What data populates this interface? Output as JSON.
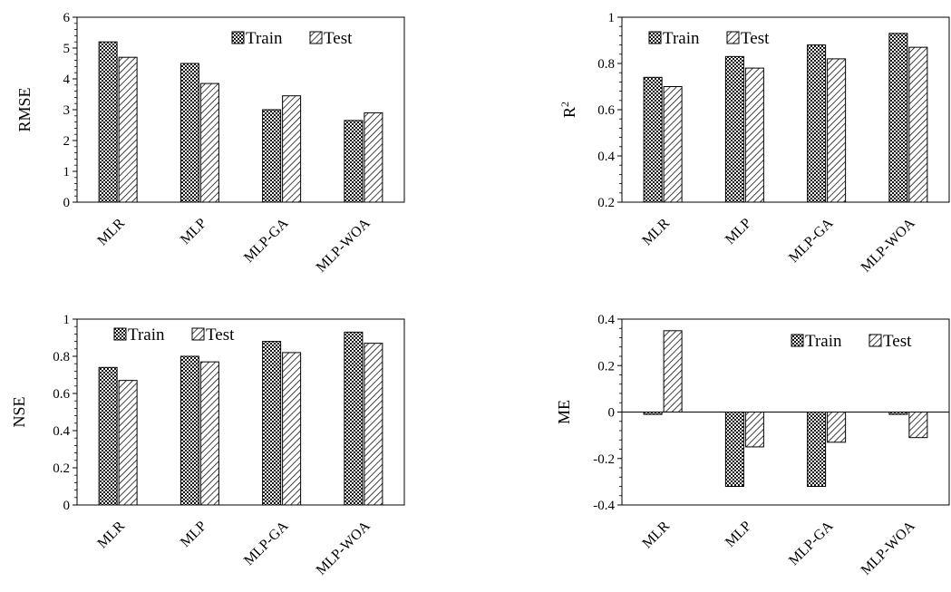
{
  "chart_data": [
    {
      "type": "bar",
      "ylabel": "RMSE",
      "categories": [
        "MLR",
        "MLP",
        "MLP-GA",
        "MLP-WOA"
      ],
      "series": [
        {
          "name": "Train",
          "values": [
            5.2,
            4.5,
            3.0,
            2.65
          ]
        },
        {
          "name": "Test",
          "values": [
            4.7,
            3.85,
            3.45,
            2.9
          ]
        }
      ],
      "ylim": [
        0,
        6
      ],
      "yticks": [
        "0",
        "1",
        "2",
        "3",
        "4",
        "5",
        "6"
      ],
      "legend_position": "top-right",
      "grid": false
    },
    {
      "type": "bar",
      "ylabel": "R2",
      "categories": [
        "MLR",
        "MLP",
        "MLP-GA",
        "MLP-WOA"
      ],
      "series": [
        {
          "name": "Train",
          "values": [
            0.74,
            0.83,
            0.88,
            0.93
          ]
        },
        {
          "name": "Test",
          "values": [
            0.7,
            0.78,
            0.82,
            0.87
          ]
        }
      ],
      "ylim": [
        0.2,
        1
      ],
      "yticks": [
        "0.2",
        "0.4",
        "0.6",
        "0.8",
        "1"
      ],
      "legend_position": "top-left",
      "grid": false
    },
    {
      "type": "bar",
      "ylabel": "NSE",
      "categories": [
        "MLR",
        "MLP",
        "MLP-GA",
        "MLP-WOA"
      ],
      "series": [
        {
          "name": "Train",
          "values": [
            0.74,
            0.8,
            0.88,
            0.93
          ]
        },
        {
          "name": "Test",
          "values": [
            0.67,
            0.77,
            0.82,
            0.87
          ]
        }
      ],
      "ylim": [
        0,
        1
      ],
      "yticks": [
        "0",
        "0.2",
        "0.4",
        "0.6",
        "0.8",
        "1"
      ],
      "legend_position": "top-left",
      "grid": false
    },
    {
      "type": "bar",
      "ylabel": "ME",
      "categories": [
        "MLR",
        "MLP",
        "MLP-GA",
        "MLP-WOA"
      ],
      "series": [
        {
          "name": "Train",
          "values": [
            -0.01,
            -0.32,
            -0.32,
            -0.01
          ]
        },
        {
          "name": "Test",
          "values": [
            0.35,
            -0.15,
            -0.13,
            -0.11
          ]
        }
      ],
      "ylim": [
        -0.4,
        0.4
      ],
      "yticks": [
        "-0.4",
        "-0.2",
        "0",
        "0.2",
        "0.4"
      ],
      "legend_position": "top-right",
      "grid": false
    }
  ]
}
